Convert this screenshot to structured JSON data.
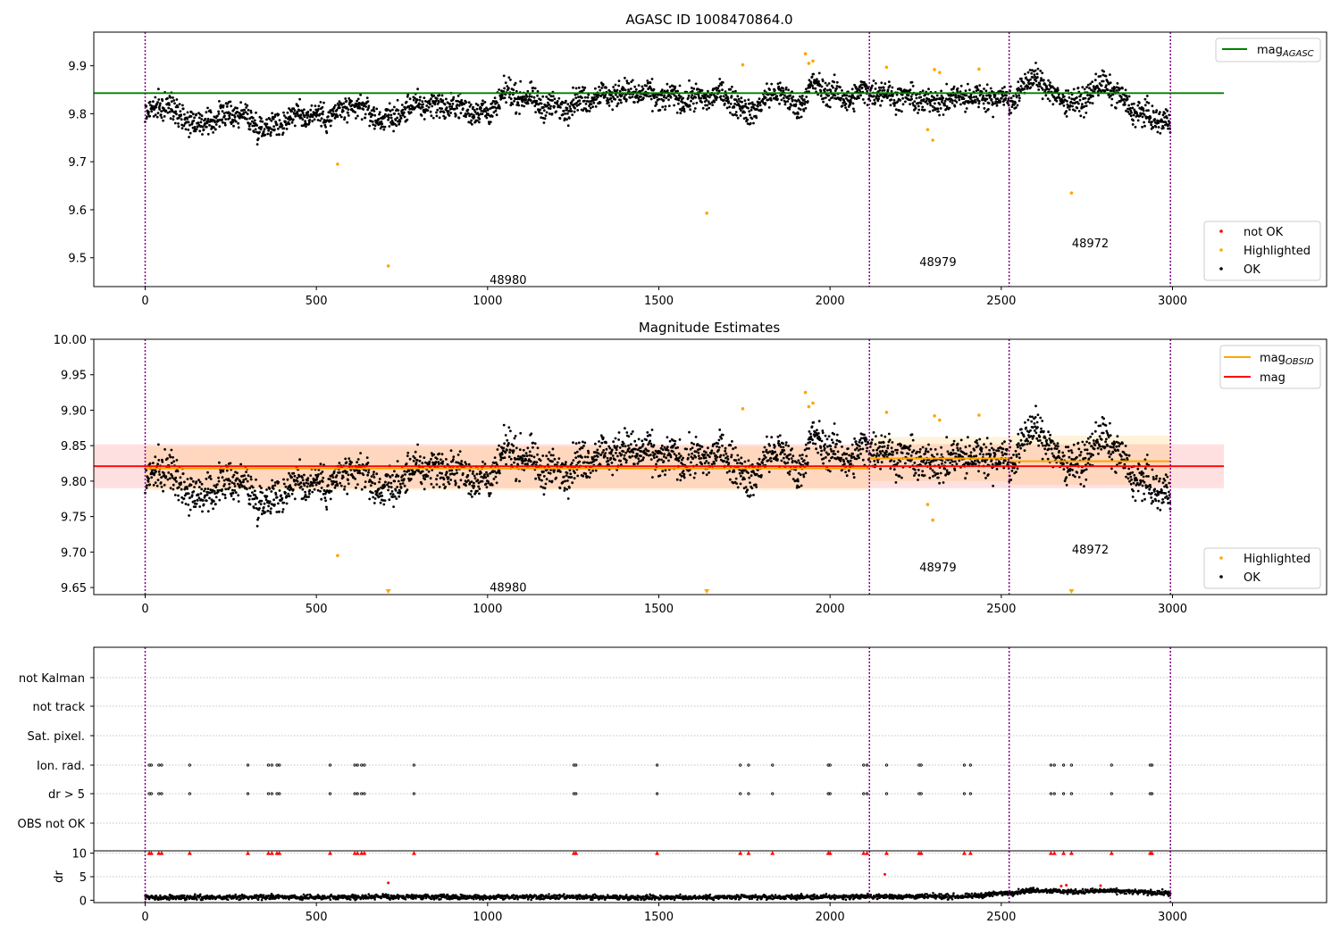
{
  "chart_data": [
    {
      "type": "scatter",
      "title": "AGASC ID 1008470864.0",
      "xlim": [
        -150,
        3450
      ],
      "ylim": [
        9.44,
        9.97
      ],
      "xticks": [
        0,
        500,
        1000,
        1500,
        2000,
        2500,
        3000
      ],
      "yticks": [
        9.5,
        9.6,
        9.7,
        9.8,
        9.9
      ],
      "obs_boundaries": [
        0,
        2115,
        2523,
        2994
      ],
      "obsid_labels": [
        {
          "text": "48980",
          "x": 1060,
          "y": 9.455
        },
        {
          "text": "48979",
          "x": 2315,
          "y": 9.492
        },
        {
          "text": "48972",
          "x": 2760,
          "y": 9.531
        }
      ],
      "reference_lines": [
        {
          "name": "mag_AGASC",
          "value": 9.843,
          "x": [
            -150,
            3150
          ],
          "color": "#008000"
        }
      ],
      "legend_upper": [
        {
          "label": "mag",
          "sub": "AGASC",
          "color": "#008000"
        }
      ],
      "legend_lower": [
        {
          "label": "not OK",
          "color": "#ff0000"
        },
        {
          "label": "Highlighted",
          "color": "#ffa500"
        },
        {
          "label": "OK",
          "color": "#000000"
        }
      ],
      "highlighted_points": [
        [
          562,
          9.695
        ],
        [
          710,
          9.483
        ],
        [
          1640,
          9.593
        ],
        [
          1745,
          9.902
        ],
        [
          1928,
          9.925
        ],
        [
          1938,
          9.905
        ],
        [
          1950,
          9.91
        ],
        [
          2165,
          9.897
        ],
        [
          2285,
          9.767
        ],
        [
          2300,
          9.745
        ],
        [
          2305,
          9.892
        ],
        [
          2320,
          9.886
        ],
        [
          2435,
          9.893
        ],
        [
          2705,
          9.635
        ]
      ],
      "ok_trend": [
        [
          0,
          9.8
        ],
        [
          60,
          9.82
        ],
        [
          160,
          9.775
        ],
        [
          260,
          9.805
        ],
        [
          350,
          9.77
        ],
        [
          450,
          9.8
        ],
        [
          530,
          9.795
        ],
        [
          620,
          9.815
        ],
        [
          700,
          9.785
        ],
        [
          800,
          9.82
        ],
        [
          900,
          9.815
        ],
        [
          1000,
          9.8
        ],
        [
          1060,
          9.845
        ],
        [
          1200,
          9.81
        ],
        [
          1300,
          9.835
        ],
        [
          1420,
          9.845
        ],
        [
          1500,
          9.835
        ],
        [
          1600,
          9.83
        ],
        [
          1700,
          9.84
        ],
        [
          1760,
          9.8
        ],
        [
          1850,
          9.85
        ],
        [
          1900,
          9.81
        ],
        [
          1950,
          9.86
        ],
        [
          2050,
          9.83
        ],
        [
          2115,
          9.85
        ],
        [
          2200,
          9.835
        ],
        [
          2300,
          9.825
        ],
        [
          2400,
          9.835
        ],
        [
          2500,
          9.835
        ],
        [
          2523,
          9.825
        ],
        [
          2600,
          9.88
        ],
        [
          2650,
          9.84
        ],
        [
          2720,
          9.82
        ],
        [
          2800,
          9.865
        ],
        [
          2850,
          9.83
        ],
        [
          2900,
          9.8
        ],
        [
          2994,
          9.78
        ]
      ]
    },
    {
      "type": "scatter",
      "title": "Magnitude Estimates",
      "xlim": [
        -150,
        3450
      ],
      "ylim": [
        9.64,
        10.0
      ],
      "xticks": [
        0,
        500,
        1000,
        1500,
        2000,
        2500,
        3000
      ],
      "yticks": [
        9.65,
        9.7,
        9.75,
        9.8,
        9.85,
        9.9,
        9.95,
        10.0
      ],
      "obs_boundaries": [
        0,
        2115,
        2523,
        2994
      ],
      "obsid_labels": [
        {
          "text": "48980",
          "x": 1060,
          "y": 9.651
        },
        {
          "text": "48979",
          "x": 2315,
          "y": 9.679
        },
        {
          "text": "48972",
          "x": 2760,
          "y": 9.704
        }
      ],
      "mag": {
        "value": 9.821,
        "band": [
          9.79,
          9.852
        ],
        "x": [
          -150,
          3150
        ],
        "color": "#ff0000"
      },
      "mag_obsid": [
        {
          "x": [
            0,
            2115
          ],
          "value": 9.818,
          "band": [
            9.787,
            9.849
          ]
        },
        {
          "x": [
            2115,
            2523
          ],
          "value": 9.832,
          "band": [
            9.8,
            9.862
          ]
        },
        {
          "x": [
            2523,
            2994
          ],
          "value": 9.828,
          "band": [
            9.795,
            9.864
          ]
        }
      ],
      "legend_upper": [
        {
          "label": "mag",
          "sub": "OBSID",
          "color": "#ffa500"
        },
        {
          "label": "mag",
          "sub": "",
          "color": "#ff0000"
        }
      ],
      "legend_lower": [
        {
          "label": "Highlighted",
          "color": "#ffa500"
        },
        {
          "label": "OK",
          "color": "#000000"
        }
      ],
      "highlighted_points": [
        [
          562,
          9.695
        ],
        [
          1745,
          9.902
        ],
        [
          1928,
          9.925
        ],
        [
          1938,
          9.905
        ],
        [
          1950,
          9.91
        ],
        [
          2165,
          9.897
        ],
        [
          2285,
          9.767
        ],
        [
          2300,
          9.745
        ],
        [
          2305,
          9.892
        ],
        [
          2320,
          9.886
        ],
        [
          2435,
          9.893
        ]
      ],
      "clipped_markers": [
        710,
        1640,
        2705
      ],
      "ok_trend": [
        [
          0,
          9.8
        ],
        [
          60,
          9.82
        ],
        [
          160,
          9.775
        ],
        [
          260,
          9.805
        ],
        [
          350,
          9.77
        ],
        [
          450,
          9.8
        ],
        [
          530,
          9.795
        ],
        [
          620,
          9.815
        ],
        [
          700,
          9.785
        ],
        [
          800,
          9.82
        ],
        [
          900,
          9.815
        ],
        [
          1000,
          9.8
        ],
        [
          1060,
          9.845
        ],
        [
          1200,
          9.81
        ],
        [
          1300,
          9.835
        ],
        [
          1420,
          9.845
        ],
        [
          1500,
          9.835
        ],
        [
          1600,
          9.83
        ],
        [
          1700,
          9.84
        ],
        [
          1760,
          9.8
        ],
        [
          1850,
          9.85
        ],
        [
          1900,
          9.81
        ],
        [
          1950,
          9.86
        ],
        [
          2050,
          9.83
        ],
        [
          2115,
          9.85
        ],
        [
          2200,
          9.835
        ],
        [
          2300,
          9.825
        ],
        [
          2400,
          9.835
        ],
        [
          2500,
          9.835
        ],
        [
          2523,
          9.825
        ],
        [
          2600,
          9.88
        ],
        [
          2650,
          9.84
        ],
        [
          2720,
          9.82
        ],
        [
          2800,
          9.865
        ],
        [
          2850,
          9.83
        ],
        [
          2900,
          9.8
        ],
        [
          2994,
          9.78
        ]
      ]
    },
    {
      "type": "scatter",
      "title": "",
      "xlim": [
        -150,
        3450
      ],
      "categories": [
        "not Kalman",
        "not track",
        "Sat. pixel.",
        "Ion. rad.",
        "dr > 5",
        "OBS not OK"
      ],
      "obs_boundaries": [
        0,
        2115,
        2523,
        2994
      ],
      "flag_times": [
        12,
        18,
        40,
        48,
        130,
        300,
        360,
        370,
        385,
        392,
        540,
        612,
        620,
        632,
        640,
        785,
        1252,
        1258,
        1495,
        1738,
        1762,
        1832,
        1995,
        2000,
        2098,
        2108,
        2165,
        2260,
        2266,
        2392,
        2410,
        2645,
        2655,
        2682,
        2705,
        2822,
        2935,
        2940
      ],
      "flag_rows": [
        "Ion. rad.",
        "dr > 5"
      ]
    },
    {
      "type": "scatter",
      "title": "",
      "ylabel": "dr",
      "xlim": [
        -150,
        3450
      ],
      "ylim": [
        -0.5,
        10.5
      ],
      "xticks": [
        0,
        500,
        1000,
        1500,
        2000,
        2500,
        3000
      ],
      "yticks": [
        0,
        5,
        10
      ],
      "obs_boundaries": [
        0,
        2115,
        2523,
        2994
      ],
      "clipped_dr": 10,
      "outliers": [
        [
          710,
          3.7
        ],
        [
          2160,
          5.5
        ],
        [
          2675,
          3.0
        ],
        [
          2690,
          3.2
        ],
        [
          2790,
          3.1
        ]
      ],
      "dr_trend": [
        [
          0,
          0.6
        ],
        [
          500,
          0.7
        ],
        [
          1000,
          0.7
        ],
        [
          1500,
          0.6
        ],
        [
          2000,
          0.7
        ],
        [
          2115,
          0.8
        ],
        [
          2400,
          0.8
        ],
        [
          2523,
          1.6
        ],
        [
          2600,
          2.2
        ],
        [
          2700,
          1.8
        ],
        [
          2800,
          2.0
        ],
        [
          2994,
          1.5
        ]
      ]
    }
  ]
}
